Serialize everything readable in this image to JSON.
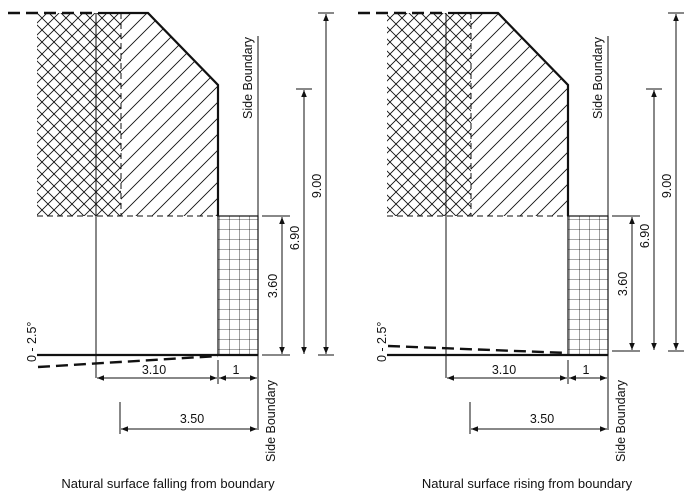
{
  "panels": [
    {
      "key": "left",
      "caption": "Natural surface falling from boundary",
      "side_boundary_label": "Side Boundary",
      "slope_label": "0 - 2.5°",
      "dims": {
        "total_height": "9.00",
        "upper_height": "6.90",
        "lower_height": "3.60",
        "width_main": "3.10",
        "width_step": "1",
        "width_total": "3.50"
      }
    },
    {
      "key": "right",
      "caption": "Natural surface rising from boundary",
      "side_boundary_label": "Side Boundary",
      "slope_label": "0 - 2.5°",
      "dims": {
        "total_height": "9.00",
        "upper_height": "6.90",
        "lower_height": "3.60",
        "width_main": "3.10",
        "width_step": "1",
        "width_total": "3.50"
      }
    }
  ]
}
